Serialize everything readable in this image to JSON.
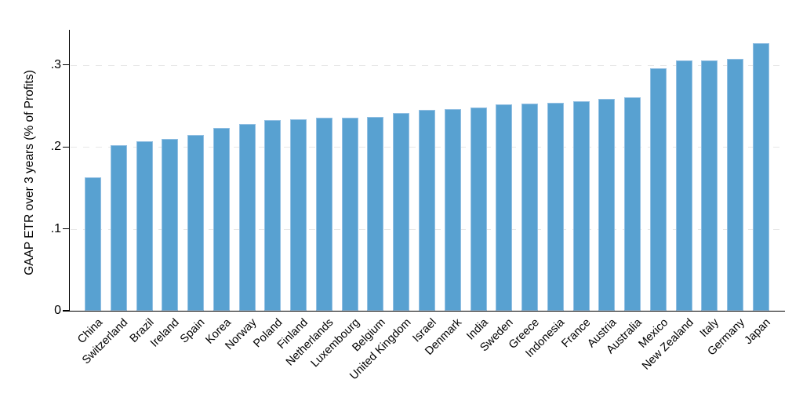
{
  "chart_data": {
    "type": "bar",
    "title": "",
    "xlabel": "",
    "ylabel": "GAAP ETR over 3 years (% of Profits)",
    "categories": [
      "China",
      "Switzerland",
      "Brazil",
      "Ireland",
      "Spain",
      "Korea",
      "Norway",
      "Poland",
      "Finland",
      "Netherlands",
      "Luxembourg",
      "Belgium",
      "United Kingdom",
      "Israel",
      "Denmark",
      "India",
      "Sweden",
      "Greece",
      "Indonesia",
      "France",
      "Austria",
      "Australia",
      "Mexico",
      "New Zealand",
      "Italy",
      "Germany",
      "Japan"
    ],
    "values": [
      0.163,
      0.202,
      0.207,
      0.21,
      0.215,
      0.223,
      0.228,
      0.233,
      0.234,
      0.236,
      0.236,
      0.237,
      0.241,
      0.245,
      0.246,
      0.248,
      0.252,
      0.253,
      0.254,
      0.256,
      0.259,
      0.261,
      0.296,
      0.306,
      0.306,
      0.307,
      0.327
    ],
    "ylim": [
      0,
      0.343
    ],
    "ytick_values": [
      0,
      0.1,
      0.2,
      0.3
    ],
    "ytick_labels": [
      "0",
      ".1",
      ".2",
      ".3"
    ],
    "x_label_rotation_deg": 45,
    "legend": "none",
    "grid": {
      "horizontal": true,
      "style": "dashed",
      "color": "#e7e7e7"
    },
    "colors": {
      "bar_fill": "#58a1d1",
      "bar_edge": "#93c0e3",
      "axis": "#000000",
      "text": "#000000",
      "background": "#ffffff"
    }
  }
}
